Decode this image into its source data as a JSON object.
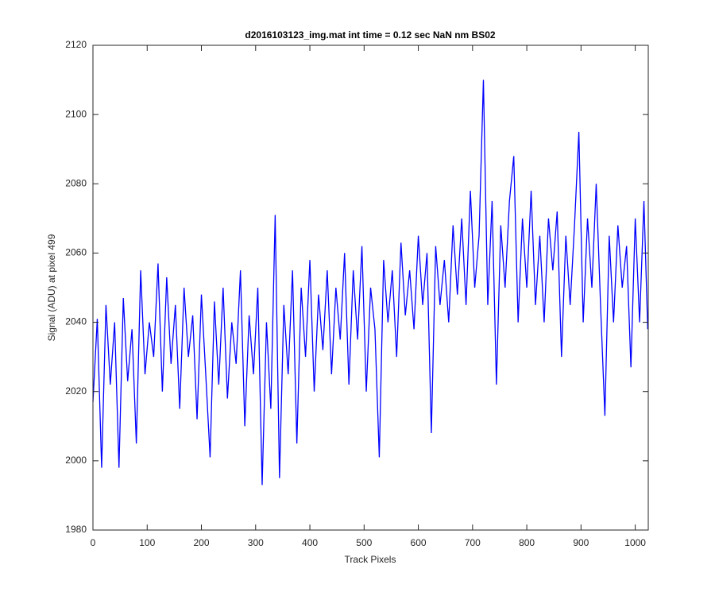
{
  "chart_data": {
    "type": "line",
    "title": "d2016103123_img.mat int time = 0.12 sec  NaN nm BS02",
    "x_label": "Track Pixels",
    "y_label": "Signal (ADU) at pixel 499",
    "x": [
      0,
      8,
      16,
      24,
      32,
      40,
      48,
      56,
      64,
      72,
      80,
      88,
      96,
      104,
      112,
      120,
      128,
      136,
      144,
      152,
      160,
      168,
      176,
      184,
      192,
      200,
      208,
      216,
      224,
      232,
      240,
      248,
      256,
      264,
      272,
      280,
      288,
      296,
      304,
      312,
      320,
      328,
      336,
      344,
      352,
      360,
      368,
      376,
      384,
      392,
      400,
      408,
      416,
      424,
      432,
      440,
      448,
      456,
      464,
      472,
      480,
      488,
      496,
      504,
      512,
      520,
      528,
      536,
      544,
      552,
      560,
      568,
      576,
      584,
      592,
      600,
      608,
      616,
      624,
      632,
      640,
      648,
      656,
      664,
      672,
      680,
      688,
      696,
      704,
      712,
      720,
      728,
      736,
      744,
      752,
      760,
      768,
      776,
      784,
      792,
      800,
      808,
      816,
      824,
      832,
      840,
      848,
      856,
      864,
      872,
      880,
      888,
      896,
      904,
      912,
      920,
      928,
      936,
      944,
      952,
      960,
      968,
      976,
      984,
      992,
      1000,
      1008,
      1016,
      1023
    ],
    "series": [
      {
        "name": "signal",
        "color": "#0000ff",
        "values": [
          2017,
          2041,
          1998,
          2045,
          2022,
          2040,
          1998,
          2047,
          2023,
          2038,
          2005,
          2055,
          2025,
          2040,
          2030,
          2057,
          2020,
          2053,
          2028,
          2045,
          2015,
          2050,
          2030,
          2042,
          2012,
          2048,
          2025,
          2001,
          2046,
          2022,
          2050,
          2018,
          2040,
          2028,
          2055,
          2010,
          2042,
          2025,
          2050,
          1993,
          2040,
          2015,
          2071,
          1995,
          2045,
          2025,
          2055,
          2005,
          2050,
          2030,
          2058,
          2020,
          2048,
          2032,
          2055,
          2025,
          2050,
          2035,
          2060,
          2022,
          2055,
          2035,
          2062,
          2020,
          2050,
          2038,
          2001,
          2058,
          2040,
          2055,
          2030,
          2063,
          2042,
          2055,
          2038,
          2065,
          2045,
          2060,
          2008,
          2062,
          2045,
          2058,
          2040,
          2068,
          2048,
          2070,
          2045,
          2078,
          2050,
          2065,
          2110,
          2045,
          2075,
          2022,
          2068,
          2050,
          2075,
          2088,
          2040,
          2070,
          2050,
          2078,
          2045,
          2065,
          2040,
          2070,
          2055,
          2072,
          2030,
          2065,
          2045,
          2068,
          2095,
          2040,
          2070,
          2050,
          2080,
          2045,
          2013,
          2065,
          2040,
          2068,
          2050,
          2062,
          2027,
          2070,
          2040,
          2075,
          2038
        ]
      }
    ],
    "xlim": [
      0,
      1024
    ],
    "ylim": [
      1980,
      2120
    ],
    "xticks": [
      0,
      100,
      200,
      300,
      400,
      500,
      600,
      700,
      800,
      900,
      1000
    ],
    "yticks": [
      1980,
      2000,
      2020,
      2040,
      2060,
      2080,
      2100,
      2120
    ],
    "grid": false
  }
}
